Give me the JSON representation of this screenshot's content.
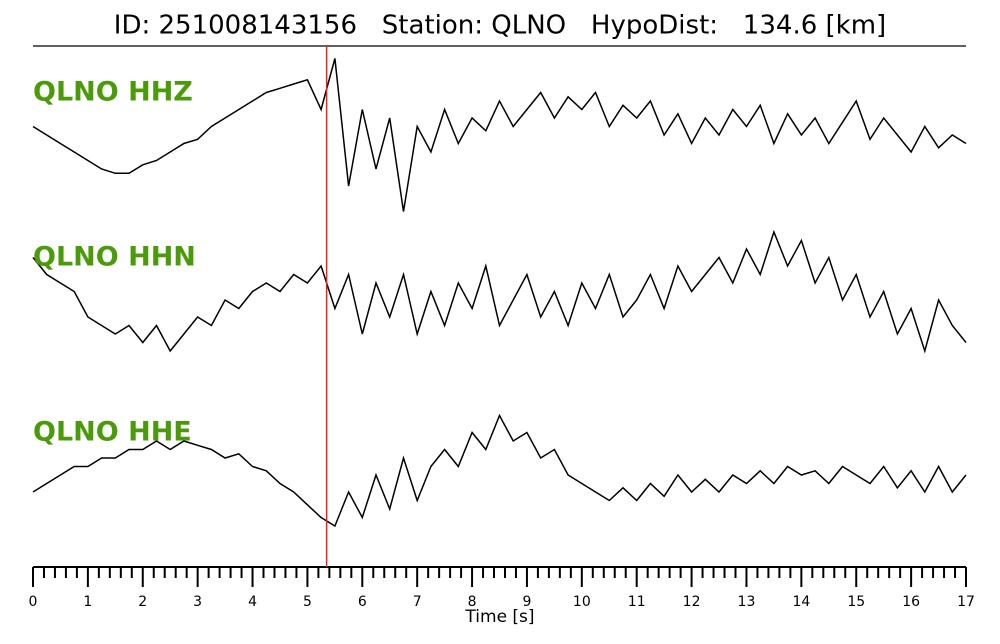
{
  "chart_data": {
    "type": "line",
    "title": "ID: 251008143156   Station: QLNO   HypoDist:   134.6 [km]",
    "xlabel": "Time [s]",
    "xlim": [
      0,
      17
    ],
    "xticks": [
      0,
      1,
      2,
      3,
      4,
      5,
      6,
      7,
      8,
      9,
      10,
      11,
      12,
      13,
      14,
      15,
      16,
      17
    ],
    "xminorticks": [
      0.2,
      0.4,
      0.6,
      0.8,
      1.2,
      1.4,
      1.6,
      1.8,
      2.2,
      2.4,
      2.6,
      2.8,
      3.2,
      3.4,
      3.6,
      3.8,
      4.2,
      4.4,
      4.6,
      4.8,
      5.2,
      5.4,
      5.6,
      5.8,
      6.2,
      6.4,
      6.6,
      6.8,
      7.2,
      7.4,
      7.6,
      7.8,
      8.2,
      8.4,
      8.6,
      8.8,
      9.2,
      9.4,
      9.6,
      9.8,
      10.2,
      10.4,
      10.6,
      10.8,
      11.2,
      11.4,
      11.6,
      11.8,
      12.2,
      12.4,
      12.6,
      12.8,
      13.2,
      13.4,
      13.6,
      13.8,
      14.2,
      14.4,
      14.6,
      14.8,
      15.2,
      15.4,
      15.6,
      15.8,
      16.2,
      16.4,
      16.6,
      16.8
    ],
    "ylim": [
      -1,
      1
    ],
    "pick": {
      "x": 5.35,
      "color": "#e8231b"
    },
    "x": [
      0,
      0.25,
      0.5,
      0.75,
      1,
      1.25,
      1.5,
      1.75,
      2,
      2.25,
      2.5,
      2.75,
      3,
      3.25,
      3.5,
      3.75,
      4,
      4.25,
      4.5,
      4.75,
      5,
      5.25,
      5.5,
      5.75,
      6,
      6.25,
      6.5,
      6.75,
      7,
      7.25,
      7.5,
      7.75,
      8,
      8.25,
      8.5,
      8.75,
      9,
      9.25,
      9.5,
      9.75,
      10,
      10.25,
      10.5,
      10.75,
      11,
      11.25,
      11.5,
      11.75,
      12,
      12.25,
      12.5,
      12.75,
      13,
      13.25,
      13.5,
      13.75,
      14,
      14.25,
      14.5,
      14.75,
      15,
      15.25,
      15.5,
      15.75,
      16,
      16.25,
      16.5,
      16.75,
      17
    ],
    "series": [
      {
        "name": "QLNO HHZ",
        "color": "#000000",
        "label_color": "#4a9a0a",
        "values": [
          0.1,
          0.0,
          -0.1,
          -0.2,
          -0.3,
          -0.4,
          -0.45,
          -0.45,
          -0.35,
          -0.3,
          -0.2,
          -0.1,
          -0.05,
          0.1,
          0.2,
          0.3,
          0.4,
          0.5,
          0.55,
          0.6,
          0.65,
          0.3,
          0.9,
          -0.6,
          0.3,
          -0.4,
          0.2,
          -0.9,
          0.1,
          -0.2,
          0.3,
          -0.1,
          0.2,
          0.05,
          0.4,
          0.1,
          0.3,
          0.5,
          0.2,
          0.45,
          0.3,
          0.5,
          0.1,
          0.35,
          0.2,
          0.4,
          0.0,
          0.25,
          -0.1,
          0.2,
          0.0,
          0.3,
          0.1,
          0.35,
          -0.1,
          0.25,
          0.0,
          0.2,
          -0.1,
          0.15,
          0.4,
          -0.05,
          0.2,
          0.0,
          -0.2,
          0.1,
          -0.15,
          0.0,
          -0.1
        ]
      },
      {
        "name": "QLNO HHN",
        "color": "#000000",
        "label_color": "#4a9a0a",
        "values": [
          0.5,
          0.3,
          0.2,
          0.1,
          -0.2,
          -0.3,
          -0.4,
          -0.3,
          -0.5,
          -0.3,
          -0.6,
          -0.4,
          -0.2,
          -0.3,
          0.0,
          -0.1,
          0.1,
          0.2,
          0.1,
          0.3,
          0.2,
          0.4,
          -0.1,
          0.3,
          -0.4,
          0.2,
          -0.2,
          0.3,
          -0.4,
          0.1,
          -0.3,
          0.2,
          -0.1,
          0.4,
          -0.3,
          0.0,
          0.3,
          -0.2,
          0.1,
          -0.3,
          0.2,
          -0.1,
          0.3,
          -0.2,
          0.0,
          0.3,
          -0.1,
          0.4,
          0.1,
          0.3,
          0.5,
          0.2,
          0.6,
          0.3,
          0.8,
          0.4,
          0.7,
          0.2,
          0.5,
          0.0,
          0.3,
          -0.2,
          0.1,
          -0.4,
          -0.1,
          -0.6,
          0.0,
          -0.3,
          -0.5
        ]
      },
      {
        "name": "QLNO HHE",
        "color": "#000000",
        "label_color": "#4a9a0a",
        "values": [
          -0.2,
          -0.1,
          0.0,
          0.1,
          0.1,
          0.2,
          0.2,
          0.3,
          0.3,
          0.4,
          0.3,
          0.4,
          0.35,
          0.3,
          0.2,
          0.25,
          0.1,
          0.05,
          -0.1,
          -0.2,
          -0.35,
          -0.5,
          -0.6,
          -0.2,
          -0.5,
          0.0,
          -0.4,
          0.2,
          -0.3,
          0.1,
          0.3,
          0.1,
          0.5,
          0.3,
          0.7,
          0.4,
          0.5,
          0.2,
          0.3,
          0.0,
          -0.1,
          -0.2,
          -0.3,
          -0.15,
          -0.3,
          -0.1,
          -0.25,
          0.0,
          -0.2,
          -0.05,
          -0.2,
          0.0,
          -0.1,
          0.05,
          -0.1,
          0.1,
          0.0,
          0.05,
          -0.1,
          0.1,
          0.0,
          -0.1,
          0.1,
          -0.15,
          0.05,
          -0.2,
          0.1,
          -0.2,
          0.0
        ]
      }
    ]
  }
}
